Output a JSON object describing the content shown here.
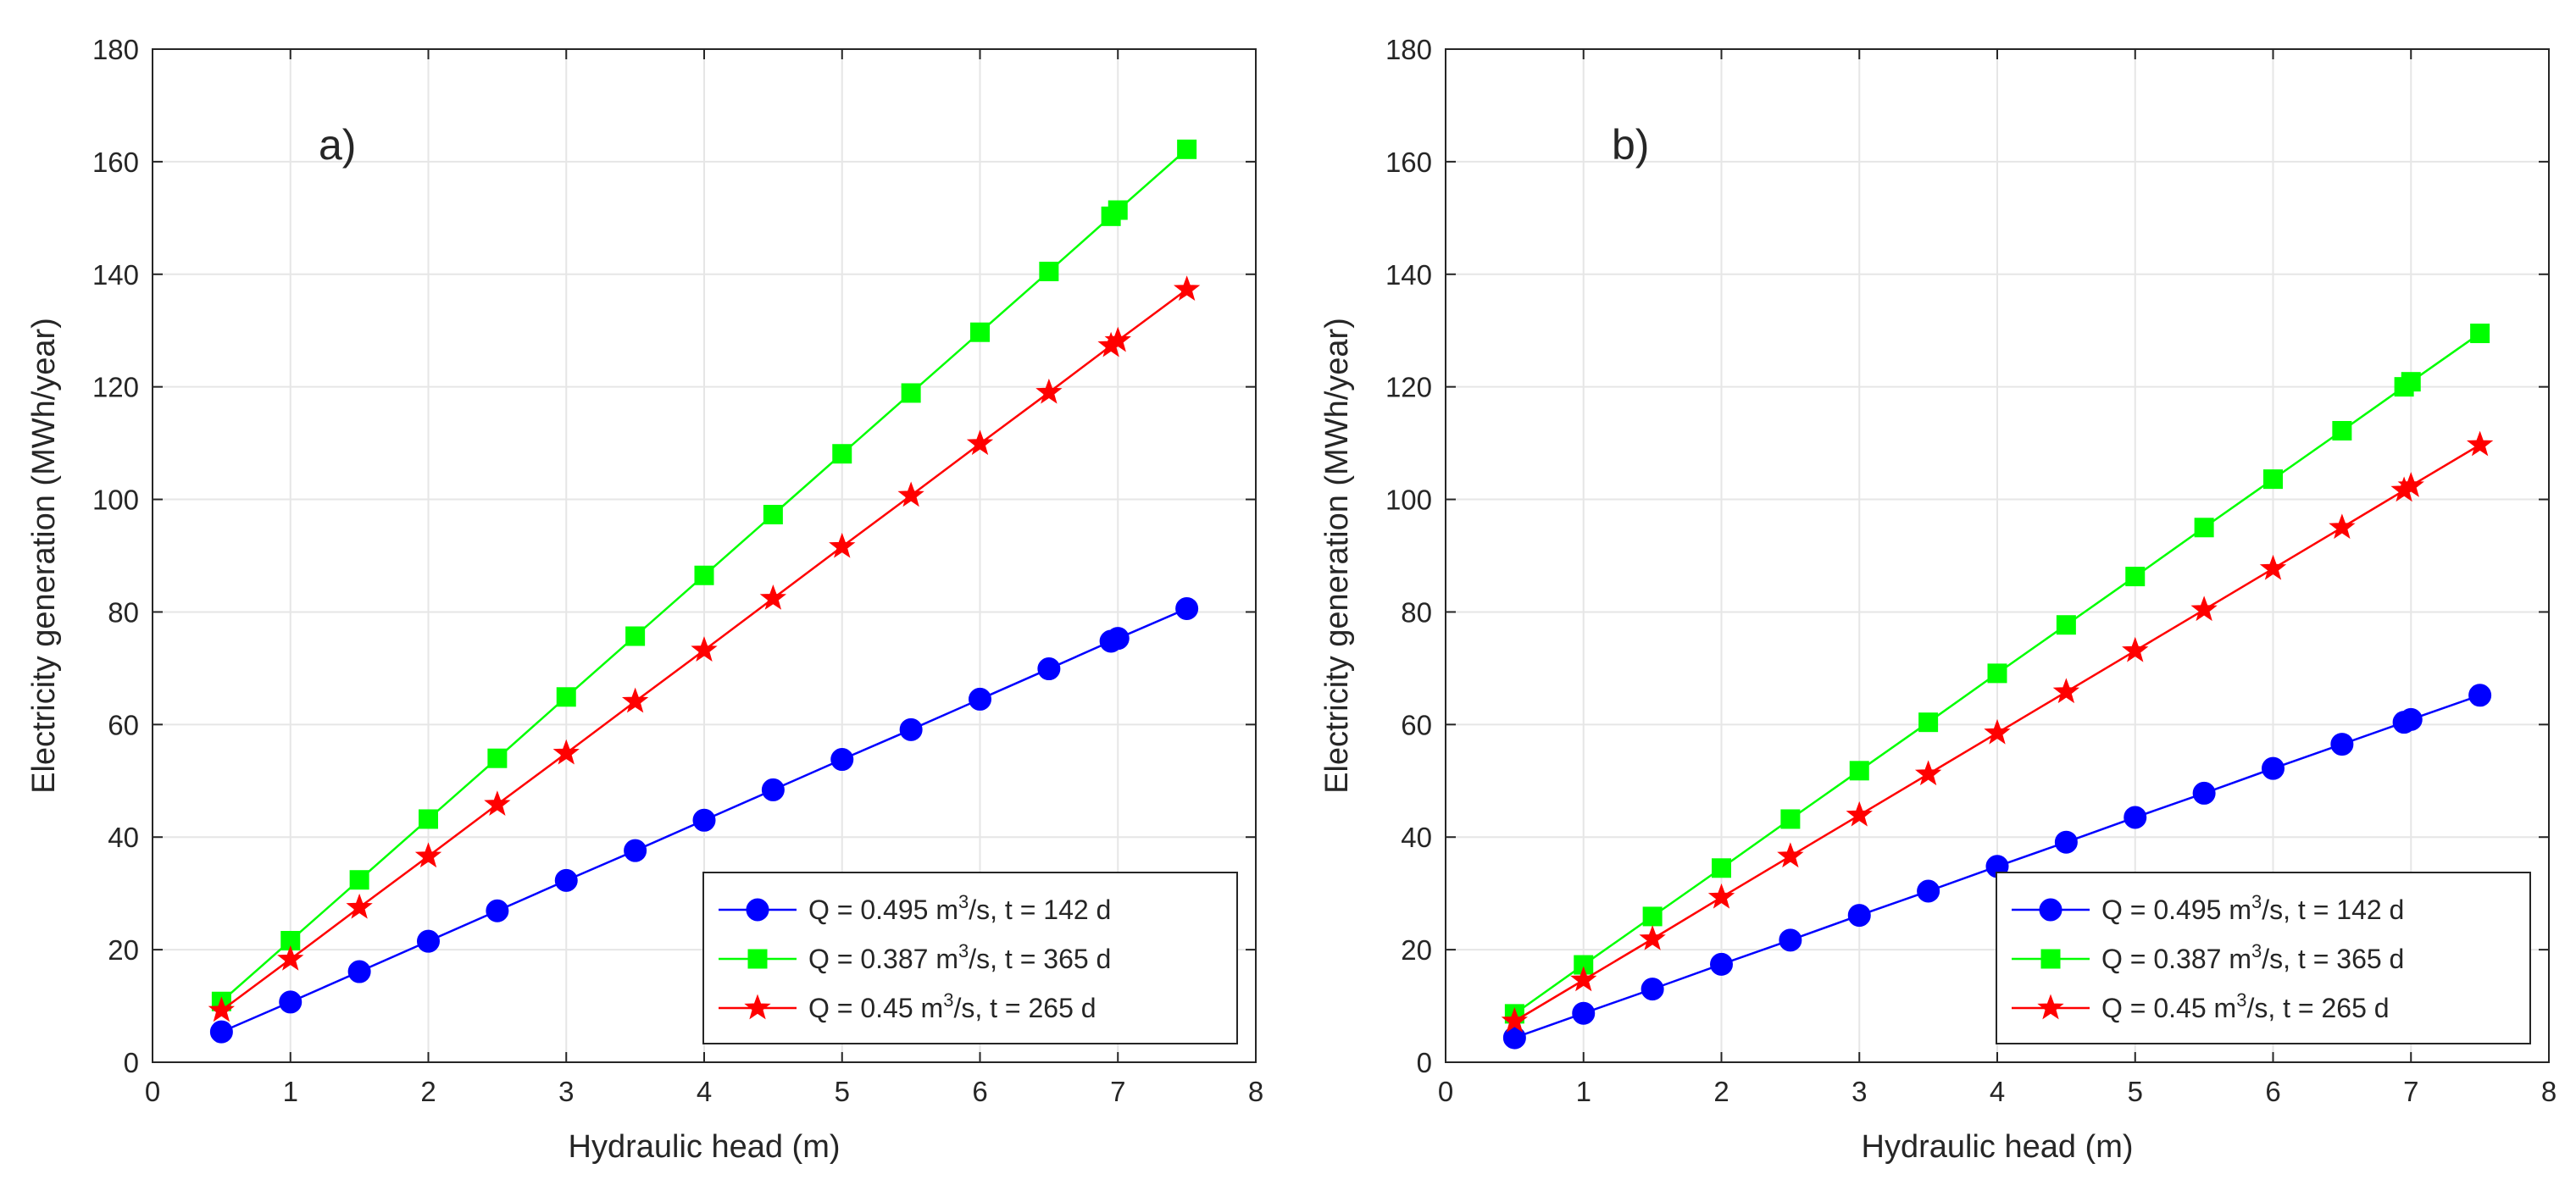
{
  "chart_data": [
    {
      "type": "line",
      "panel_label": "a)",
      "xlabel": "Hydraulic head (m)",
      "ylabel": "Electricity generation (MWh/year)",
      "xlim": [
        0,
        8
      ],
      "ylim": [
        0,
        180
      ],
      "xticks": [
        0,
        1,
        2,
        3,
        4,
        5,
        6,
        7,
        8
      ],
      "yticks": [
        0,
        20,
        40,
        60,
        80,
        100,
        120,
        140,
        160,
        180
      ],
      "grid": true,
      "legend_position": "bottom-right",
      "x": [
        0.5,
        1,
        1.5,
        2,
        2.5,
        3,
        3.5,
        4,
        4.5,
        5,
        5.5,
        6,
        6.5,
        6.95,
        7,
        7.5
      ],
      "series": [
        {
          "name": "Q = 0.495 m³/s, t = 142 d",
          "legend_prefix": "Q = 0.495 m",
          "legend_sup": "3",
          "legend_suffix": "/s, t = 142 d",
          "color": "#0000ff",
          "marker": "circle",
          "values": [
            5.4,
            10.7,
            16.1,
            21.5,
            26.9,
            32.3,
            37.6,
            43.0,
            48.4,
            53.8,
            59.1,
            64.5,
            69.9,
            74.8,
            75.3,
            80.6
          ]
        },
        {
          "name": "Q = 0.387 m³/s, t = 365 d",
          "legend_prefix": "Q = 0.387 m",
          "legend_sup": "3",
          "legend_suffix": "/s, t = 365 d",
          "color": "#00ff00",
          "marker": "square",
          "values": [
            10.8,
            21.6,
            32.4,
            43.2,
            54.0,
            64.9,
            75.7,
            86.5,
            97.3,
            108.1,
            118.9,
            129.7,
            140.5,
            150.3,
            151.4,
            162.2
          ]
        },
        {
          "name": "Q = 0.45 m³/s, t = 265 d",
          "legend_prefix": "Q = 0.45 m",
          "legend_sup": "3",
          "legend_suffix": "/s, t = 265 d",
          "color": "#ff0000",
          "marker": "star",
          "values": [
            9.2,
            18.3,
            27.5,
            36.6,
            45.8,
            54.9,
            64.1,
            73.2,
            82.4,
            91.6,
            100.7,
            109.9,
            119.0,
            127.3,
            128.2,
            137.3
          ]
        }
      ]
    },
    {
      "type": "line",
      "panel_label": "b)",
      "xlabel": "Hydraulic head (m)",
      "ylabel": "Electricity generation (MWh/year)",
      "xlim": [
        0,
        8
      ],
      "ylim": [
        0,
        180
      ],
      "xticks": [
        0,
        1,
        2,
        3,
        4,
        5,
        6,
        7,
        8
      ],
      "yticks": [
        0,
        20,
        40,
        60,
        80,
        100,
        120,
        140,
        160,
        180
      ],
      "grid": true,
      "legend_position": "bottom-right",
      "x": [
        0.5,
        1,
        1.5,
        2,
        2.5,
        3,
        3.5,
        4,
        4.5,
        5,
        5.5,
        6,
        6.5,
        6.95,
        7,
        7.5
      ],
      "series": [
        {
          "name": "Q = 0.495 m³/s, t = 142 d",
          "legend_prefix": "Q = 0.495 m",
          "legend_sup": "3",
          "legend_suffix": "/s, t = 142 d",
          "color": "#0000ff",
          "marker": "circle",
          "values": [
            4.35,
            8.7,
            13.0,
            17.4,
            21.7,
            26.1,
            30.4,
            34.8,
            39.1,
            43.5,
            47.8,
            52.2,
            56.5,
            60.4,
            60.9,
            65.2
          ]
        },
        {
          "name": "Q = 0.387 m³/s, t = 365 d",
          "legend_prefix": "Q = 0.387 m",
          "legend_sup": "3",
          "legend_suffix": "/s, t = 365 d",
          "color": "#00ff00",
          "marker": "square",
          "values": [
            8.6,
            17.3,
            25.9,
            34.5,
            43.2,
            51.8,
            60.4,
            69.1,
            77.7,
            86.3,
            95.0,
            103.6,
            112.2,
            120.0,
            120.9,
            129.5
          ]
        },
        {
          "name": "Q = 0.45 m³/s, t = 265 d",
          "legend_prefix": "Q = 0.45 m",
          "legend_sup": "3",
          "legend_suffix": "/s, t = 265 d",
          "color": "#ff0000",
          "marker": "star",
          "values": [
            7.3,
            14.6,
            21.9,
            29.3,
            36.6,
            43.9,
            51.2,
            58.5,
            65.8,
            73.1,
            80.4,
            87.7,
            95.0,
            101.6,
            102.4,
            109.7
          ]
        }
      ]
    }
  ]
}
